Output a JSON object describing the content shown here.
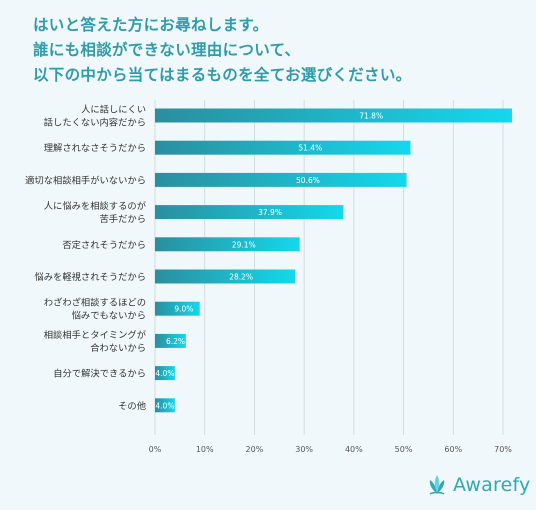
{
  "header": {
    "title_lines": [
      "はいと答えた方にお尋ねします。",
      "誰にも相談ができない理由について、",
      "以下の中から当てはまるものを全てお選びください。"
    ]
  },
  "brand": {
    "name": "Awarefy",
    "logo_icon": "awarefy-logo-icon"
  },
  "colors": {
    "bar_start": "#2b8e9e",
    "bar_end": "#14d8ec",
    "title": "#2f9cab",
    "grid": "#c9d6dc",
    "label": "#333333"
  },
  "chart_data": {
    "type": "bar",
    "orientation": "horizontal",
    "categories": [
      [
        "人に話しにくい",
        "話したくない内容だから"
      ],
      [
        "理解されなさそうだから"
      ],
      [
        "適切な相談相手がいないから"
      ],
      [
        "人に悩みを相談するのが",
        "苦手だから"
      ],
      [
        "否定されそうだから"
      ],
      [
        "悩みを軽視されそうだから"
      ],
      [
        "わざわざ相談するほどの",
        "悩みでもないから"
      ],
      [
        "相談相手とタイミングが",
        "合わないから"
      ],
      [
        "自分で解決できるから"
      ],
      [
        "その他"
      ]
    ],
    "values": [
      71.8,
      51.4,
      50.6,
      37.9,
      29.1,
      28.2,
      9.0,
      6.2,
      4.0,
      4.0
    ],
    "value_labels": [
      "71.8%",
      "51.4%",
      "50.6%",
      "37.9%",
      "29.1%",
      "28.2%",
      "9.0%",
      "6.2%",
      "4.0%",
      "4.0%"
    ],
    "xlim": [
      0,
      70
    ],
    "xticks": [
      "0%",
      "10%",
      "20%",
      "30%",
      "40%",
      "50%",
      "60%",
      "70%"
    ],
    "grid": true
  }
}
